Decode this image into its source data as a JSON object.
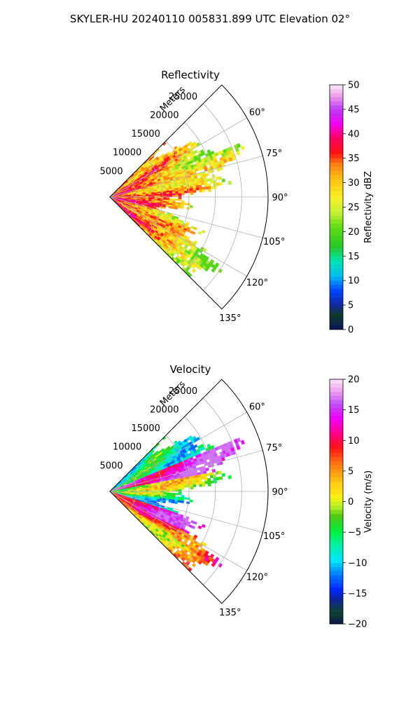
{
  "figure_title": "SKYLER-HU  20240110  005831.899 UTC Elevation 02°",
  "chart_data": [
    {
      "type": "heatmap",
      "title": "Reflectivity",
      "radial_axis_label": "Meters",
      "radial_ticks": [
        5000,
        10000,
        15000,
        20000,
        25000
      ],
      "radial_tick_labels": [
        "5000",
        "10000",
        "15000",
        "20000",
        "25000"
      ],
      "radial_range": [
        0,
        30000
      ],
      "azimuth_range": [
        45,
        135
      ],
      "azimuth_ticks": [
        60,
        75,
        90,
        105,
        120,
        135
      ],
      "azimuth_tick_labels": [
        "60°",
        "75°",
        "90°",
        "105°",
        "120°",
        "135°"
      ],
      "grid": true,
      "colorbar": {
        "label": "Reflectivity dBZ",
        "range": [
          0,
          50
        ],
        "ticks": [
          0,
          5,
          10,
          15,
          20,
          25,
          30,
          35,
          40,
          45,
          50
        ],
        "tick_labels": [
          "0",
          "5",
          "10",
          "15",
          "20",
          "25",
          "30",
          "35",
          "40",
          "45",
          "50"
        ]
      }
    },
    {
      "type": "heatmap",
      "title": "Velocity",
      "radial_axis_label": "Meters",
      "radial_ticks": [
        5000,
        10000,
        15000,
        20000,
        25000
      ],
      "radial_tick_labels": [
        "5000",
        "10000",
        "15000",
        "20000",
        "25000"
      ],
      "radial_range": [
        0,
        30000
      ],
      "azimuth_range": [
        45,
        135
      ],
      "azimuth_ticks": [
        60,
        75,
        90,
        105,
        120,
        135
      ],
      "azimuth_tick_labels": [
        "60°",
        "75°",
        "90°",
        "105°",
        "120°",
        "135°"
      ],
      "grid": true,
      "colorbar": {
        "label": "Velocity (m/s)",
        "range": [
          -20,
          20
        ],
        "ticks": [
          -20,
          -15,
          -10,
          -5,
          0,
          5,
          10,
          15,
          20
        ],
        "tick_labels": [
          "−20",
          "−15",
          "−10",
          "−5",
          "0",
          "5",
          "10",
          "15",
          "20"
        ]
      }
    }
  ]
}
